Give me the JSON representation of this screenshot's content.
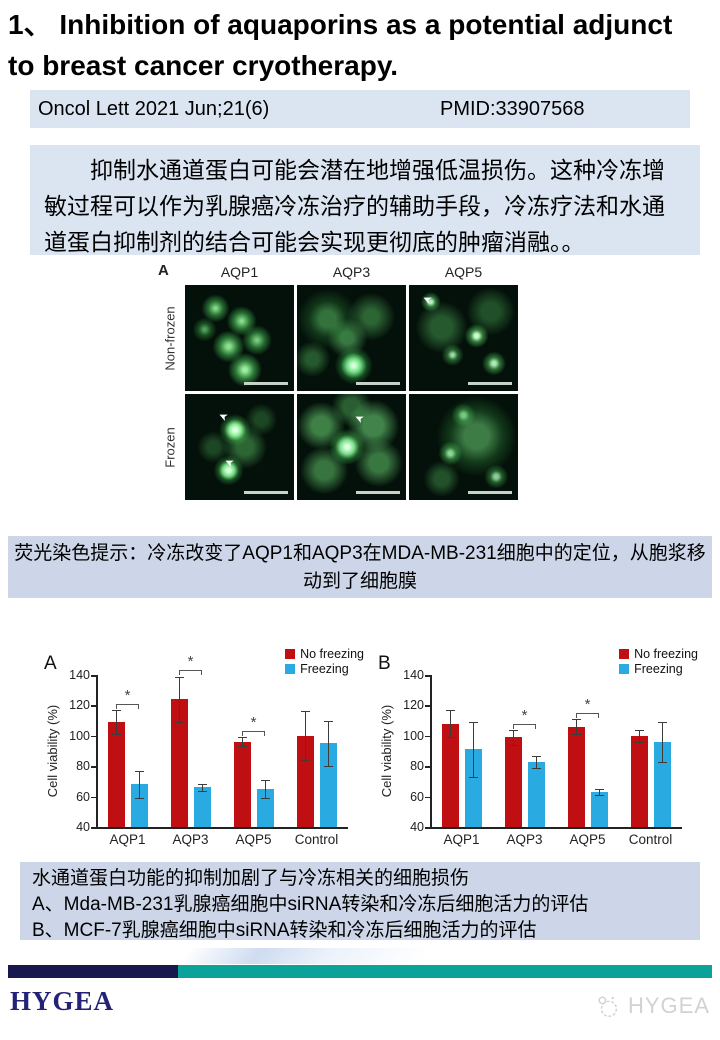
{
  "title": "1、 Inhibition of aquaporins as a potential adjunct to breast cancer cryotherapy.",
  "citation": {
    "journal": "Oncol Lett 2021 Jun;21(6)",
    "pmid": "PMID:33907568"
  },
  "abstract_cn": "抑制水通道蛋白可能会潜在地增强低温损伤。这种冷冻增敏过程可以作为乳腺癌冷冻治疗的辅助手段，冷冻疗法和水通道蛋白抑制剂的结合可能会实现更彻底的肿瘤消融。。",
  "figure": {
    "label": "A",
    "columns": [
      "AQP1",
      "AQP3",
      "AQP5"
    ],
    "rows": [
      "Non-frozen",
      "Frozen"
    ]
  },
  "caption_fluorescence": "荧光染色提示：冷冻改变了AQP1和AQP3在MDA-MB-231细胞中的定位，从胞浆移动到了细胞膜",
  "caption_charts": {
    "line1": "水通道蛋白功能的抑制加剧了与冷冻相关的细胞损伤",
    "line2": "A、Mda-MB-231乳腺癌细胞中siRNA转染和冷冻后细胞活力的评估",
    "line3": "B、MCF-7乳腺癌细胞中siRNA转染和冷冻后细胞活力的评估"
  },
  "chart_data": [
    {
      "type": "bar",
      "panel": "A",
      "title": "",
      "ylabel": "Cell viability (%)",
      "xlabel": "",
      "ylim": [
        40,
        140
      ],
      "yticks": [
        40,
        60,
        80,
        100,
        120,
        140
      ],
      "grid": false,
      "legend_position": "top-right",
      "categories": [
        "AQP1",
        "AQP3",
        "AQP5",
        "Control"
      ],
      "series": [
        {
          "name": "No freezing",
          "color": "#c00f12",
          "values": [
            109,
            124,
            96,
            100
          ],
          "errors": [
            8,
            15,
            3,
            16
          ]
        },
        {
          "name": "Freezing",
          "color": "#29abe2",
          "values": [
            68,
            66,
            65,
            95
          ],
          "errors": [
            9,
            2,
            6,
            15
          ]
        }
      ],
      "significance": [
        {
          "pair": 0,
          "label": "*"
        },
        {
          "pair": 1,
          "label": "*"
        },
        {
          "pair": 2,
          "label": "*"
        }
      ]
    },
    {
      "type": "bar",
      "panel": "B",
      "title": "",
      "ylabel": "Cell viability (%)",
      "xlabel": "",
      "ylim": [
        40,
        140
      ],
      "yticks": [
        40,
        60,
        80,
        100,
        120,
        140
      ],
      "grid": false,
      "legend_position": "top-right",
      "categories": [
        "AQP1",
        "AQP3",
        "AQP5",
        "Control"
      ],
      "series": [
        {
          "name": "No freezing",
          "color": "#c00f12",
          "values": [
            108,
            99,
            106,
            100
          ],
          "errors": [
            9,
            5,
            5,
            4
          ]
        },
        {
          "name": "Freezing",
          "color": "#29abe2",
          "values": [
            91,
            83,
            63,
            96
          ],
          "errors": [
            18,
            4,
            2,
            13
          ]
        }
      ],
      "significance": [
        {
          "pair": 1,
          "label": "*"
        },
        {
          "pair": 2,
          "label": "*"
        }
      ]
    }
  ],
  "footer": {
    "brand": "HYGEA",
    "watermark": "HYGEA"
  },
  "icons": {
    "arrow_marker": "➤",
    "watermark_logo": "sheep-circle-icon"
  },
  "colors": {
    "highlight_box": "#dbe5f1",
    "caption_box": "#ccd6e8",
    "footer_navy": "#18184f",
    "footer_teal": "#0ba29a",
    "bar_red": "#c00f12",
    "bar_blue": "#29abe2",
    "brand_text": "#232277"
  }
}
